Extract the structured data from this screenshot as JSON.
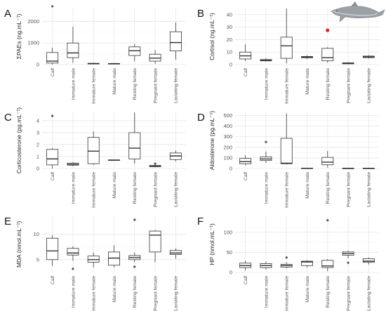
{
  "chart_data": [
    {
      "type": "box",
      "panel": "A",
      "ylabel": "ΣPAEs (ng.mL⁻¹)",
      "ylim": [
        0,
        2600
      ],
      "yticks": [
        0,
        1000,
        2000
      ],
      "categories": [
        "Calf",
        "Immature male",
        "Immature female",
        "Mature male",
        "Resting female",
        "Pregnant female",
        "Lactating female"
      ],
      "boxes": [
        {
          "min": 0,
          "q1": 70,
          "median": 160,
          "q3": 560,
          "max": 780,
          "outliers": [
            2700
          ]
        },
        {
          "min": 80,
          "q1": 320,
          "median": 540,
          "q3": 1000,
          "max": 1750,
          "outliers": []
        },
        {
          "min": 10,
          "q1": 30,
          "median": 45,
          "q3": 60,
          "max": 80,
          "outliers": []
        },
        {
          "min": 10,
          "q1": 25,
          "median": 40,
          "q3": 55,
          "max": 70,
          "outliers": []
        },
        {
          "min": 150,
          "q1": 420,
          "median": 640,
          "q3": 820,
          "max": 950,
          "outliers": []
        },
        {
          "min": 40,
          "q1": 160,
          "median": 300,
          "q3": 480,
          "max": 670,
          "outliers": []
        },
        {
          "min": 230,
          "q1": 630,
          "median": 1020,
          "q3": 1520,
          "max": 1950,
          "outliers": []
        }
      ]
    },
    {
      "type": "box",
      "panel": "B",
      "ylabel": "Cortisol (ng.mL⁻¹)",
      "ylim": [
        0,
        45
      ],
      "yticks": [
        0,
        10,
        20,
        30,
        40
      ],
      "categories": [
        "Calf",
        "Immature male",
        "Immature female",
        "Mature male",
        "Resting female",
        "Pregnant female",
        "Lactating female"
      ],
      "boxes": [
        {
          "min": 3,
          "q1": 4.5,
          "median": 7,
          "q3": 10,
          "max": 16,
          "outliers": []
        },
        {
          "min": 2.5,
          "q1": 3,
          "median": 3.5,
          "q3": 4,
          "max": 5,
          "outliers": []
        },
        {
          "min": 1,
          "q1": 5,
          "median": 15,
          "q3": 22,
          "max": 45,
          "outliers": []
        },
        {
          "min": 4.5,
          "q1": 5.5,
          "median": 6,
          "q3": 6.5,
          "max": 7.5,
          "outliers": []
        },
        {
          "min": 1.5,
          "q1": 3,
          "median": 5.5,
          "q3": 13,
          "max": 14,
          "outliers": [
            27.5
          ]
        },
        {
          "min": 0.3,
          "q1": 0.6,
          "median": 1,
          "q3": 1.4,
          "max": 2,
          "outliers": []
        },
        {
          "min": 5,
          "q1": 5.6,
          "median": 6.2,
          "q3": 6.8,
          "max": 7.5,
          "outliers": []
        }
      ],
      "highlight_color": "#d62728"
    },
    {
      "type": "box",
      "panel": "C",
      "ylabel": "Corticosterone (pg.mL⁻¹)",
      "ylim": [
        0,
        4.7
      ],
      "yticks": [
        0,
        1,
        2,
        3,
        4
      ],
      "categories": [
        "Calf",
        "Immature male",
        "Immature female",
        "Mature male",
        "Resting female",
        "Pregnant female",
        "Lactating female"
      ],
      "boxes": [
        {
          "min": 0,
          "q1": 0.3,
          "median": 0.8,
          "q3": 1.6,
          "max": 1.7,
          "outliers": [
            4.4
          ]
        },
        {
          "min": 0.2,
          "q1": 0.28,
          "median": 0.35,
          "q3": 0.45,
          "max": 0.55,
          "outliers": []
        },
        {
          "min": 0.3,
          "q1": 0.4,
          "median": 1.45,
          "q3": 2.6,
          "max": 3.1,
          "outliers": []
        },
        {
          "min": 0.68,
          "q1": 0.68,
          "median": 0.7,
          "q3": 0.72,
          "max": 0.72,
          "outliers": []
        },
        {
          "min": 0.4,
          "q1": 0.8,
          "median": 1.7,
          "q3": 3.0,
          "max": 4.7,
          "outliers": []
        },
        {
          "min": 0.1,
          "q1": 0.15,
          "median": 0.2,
          "q3": 0.25,
          "max": 0.3,
          "outliers": [
            0.4
          ]
        },
        {
          "min": 0.6,
          "q1": 0.75,
          "median": 1.05,
          "q3": 1.3,
          "max": 1.5,
          "outliers": []
        }
      ]
    },
    {
      "type": "box",
      "panel": "D",
      "ylabel": "Aldosterone (pg.mL⁻¹)",
      "ylim": [
        0,
        530
      ],
      "yticks": [
        0,
        100,
        200,
        300,
        400,
        500
      ],
      "categories": [
        "Calf",
        "Immature male",
        "Immature female",
        "Mature male",
        "Resting female",
        "Pregnant female",
        "Lactating female"
      ],
      "boxes": [
        {
          "min": 30,
          "q1": 45,
          "median": 65,
          "q3": 95,
          "max": 125,
          "outliers": []
        },
        {
          "min": 55,
          "q1": 75,
          "median": 90,
          "q3": 110,
          "max": 160,
          "outliers": [
            250
          ]
        },
        {
          "min": 40,
          "q1": 45,
          "median": 50,
          "q3": 285,
          "max": 520,
          "outliers": []
        },
        {
          "min": 0,
          "q1": 0,
          "median": 2,
          "q3": 4,
          "max": 5,
          "outliers": []
        },
        {
          "min": 10,
          "q1": 35,
          "median": 60,
          "q3": 105,
          "max": 165,
          "outliers": []
        },
        {
          "min": 0,
          "q1": 0,
          "median": 1,
          "q3": 3,
          "max": 4,
          "outliers": []
        },
        {
          "min": 0,
          "q1": 0,
          "median": 1,
          "q3": 3,
          "max": 4,
          "outliers": []
        }
      ]
    },
    {
      "type": "box",
      "panel": "E",
      "ylabel": "MDA (nmol.mL⁻¹)",
      "ylim": [
        2.5,
        13.5
      ],
      "yticks": [
        5,
        10
      ],
      "categories": [
        "Calf",
        "Immature male",
        "Immature female",
        "Mature male",
        "Resting female",
        "Pregnant female",
        "Lactating female"
      ],
      "boxes": [
        {
          "min": 3.8,
          "q1": 5,
          "median": 6.7,
          "q3": 9.2,
          "max": 9.8,
          "outliers": []
        },
        {
          "min": 4.8,
          "q1": 5.9,
          "median": 6.3,
          "q3": 7.2,
          "max": 7.6,
          "outliers": [
            3.2
          ]
        },
        {
          "min": 3.5,
          "q1": 4.5,
          "median": 5,
          "q3": 5.7,
          "max": 6.4,
          "outliers": []
        },
        {
          "min": 3.5,
          "q1": 3.9,
          "median": 5.3,
          "q3": 6.5,
          "max": 7.8,
          "outliers": []
        },
        {
          "min": 4.5,
          "q1": 5,
          "median": 5.4,
          "q3": 5.8,
          "max": 6.4,
          "outliers": [
            12.8,
            3.6
          ]
        },
        {
          "min": 4.5,
          "q1": 6.5,
          "median": 9.8,
          "q3": 10.6,
          "max": 10.8,
          "outliers": []
        },
        {
          "min": 5.2,
          "q1": 6,
          "median": 6.3,
          "q3": 6.8,
          "max": 7.2,
          "outliers": []
        }
      ]
    },
    {
      "type": "box",
      "panel": "F",
      "ylabel": "HP (nmol.mL⁻¹)",
      "ylim": [
        0,
        140
      ],
      "yticks": [
        0,
        50,
        100
      ],
      "categories": [
        "Calf",
        "Immature male",
        "Immature female",
        "Mature male",
        "Resting female",
        "Pregnant female",
        "Lactating female"
      ],
      "boxes": [
        {
          "min": 5,
          "q1": 12,
          "median": 17,
          "q3": 23,
          "max": 29,
          "outliers": []
        },
        {
          "min": 7,
          "q1": 12,
          "median": 17,
          "q3": 22,
          "max": 27,
          "outliers": []
        },
        {
          "min": 10,
          "q1": 13,
          "median": 17,
          "q3": 20,
          "max": 25,
          "outliers": [
            37
          ]
        },
        {
          "min": 12,
          "q1": 17,
          "median": 26,
          "q3": 28,
          "max": 30,
          "outliers": []
        },
        {
          "min": 3,
          "q1": 12,
          "median": 16,
          "q3": 30,
          "max": 33,
          "outliers": [
            130
          ]
        },
        {
          "min": 35,
          "q1": 43,
          "median": 47,
          "q3": 51,
          "max": 54,
          "outliers": [
            24
          ]
        },
        {
          "min": 20,
          "q1": 25,
          "median": 28,
          "q3": 34,
          "max": 37,
          "outliers": []
        }
      ]
    }
  ]
}
